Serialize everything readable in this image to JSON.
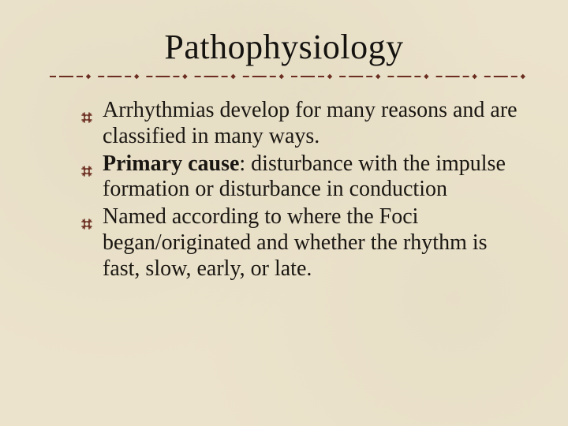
{
  "title": "Pathophysiology",
  "bullet_color": "#6b2e20",
  "divider": {
    "dash_color": "#6b2e20",
    "dot_color": "#6b2e20",
    "segments": 10
  },
  "items": [
    {
      "runs": [
        {
          "text": "Arrhythmias develop for many reasons and are classified in many ways.",
          "bold": false
        }
      ]
    },
    {
      "runs": [
        {
          "text": "Primary cause",
          "bold": true
        },
        {
          "text": ": disturbance with the impulse formation or disturbance in conduction",
          "bold": false
        }
      ]
    },
    {
      "runs": [
        {
          "text": "Named according to where the Foci began/originated and whether the rhythm is fast, slow, early, or late.",
          "bold": false
        }
      ]
    }
  ]
}
